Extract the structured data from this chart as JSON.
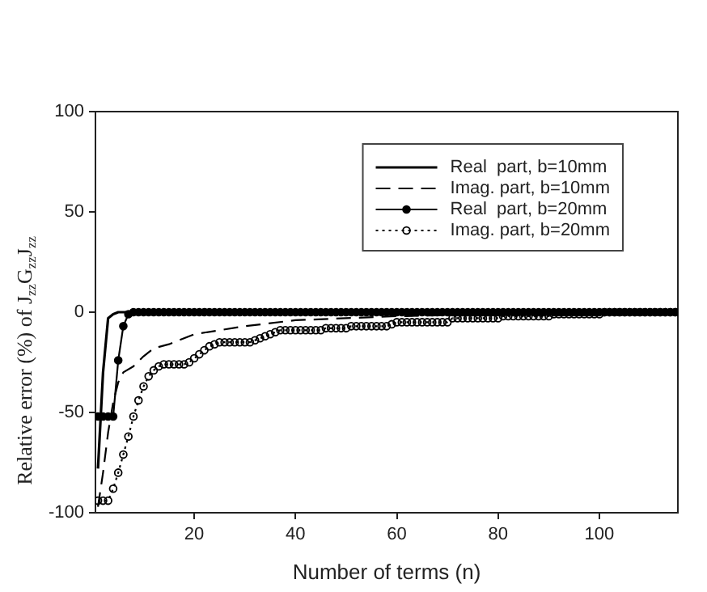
{
  "chart_data": {
    "type": "line",
    "xlabel": "Number of terms (n)",
    "ylabel": "Relative error (%) of J$_{zz}$G$_{zz}$J$_{zz}$",
    "xlim": [
      0.5,
      115.5
    ],
    "xticks": [
      20,
      40,
      60,
      80,
      100
    ],
    "ylim": [
      -100,
      100
    ],
    "yticks": [
      -100,
      -50,
      0,
      50,
      100
    ],
    "grid": false,
    "legend": "top right",
    "series": [
      {
        "name": "Real  part, b=10mm",
        "color": "#000000",
        "line_style": "solid",
        "marker": "none",
        "x": [
          1,
          2,
          3,
          4,
          5,
          10,
          115
        ],
        "values": [
          -78,
          -30,
          -3,
          -1,
          0,
          0,
          0
        ]
      },
      {
        "name": "Imag. part, b=10mm",
        "color": "#000000",
        "line_style": "dashed",
        "marker": "none",
        "x": [
          1,
          2,
          3,
          4,
          5,
          6,
          8,
          10,
          12,
          15,
          20,
          25,
          30,
          40,
          50,
          60,
          80,
          100,
          115
        ],
        "values": [
          -97,
          -80,
          -60,
          -45,
          -35,
          -30,
          -27,
          -22,
          -18,
          -16,
          -11,
          -9,
          -7,
          -4,
          -3,
          -2,
          -1,
          0,
          0
        ]
      },
      {
        "name": "Real  part, b=20mm",
        "color": "#000000",
        "line_style": "solid",
        "marker": "circle",
        "x": [
          1,
          2,
          3,
          4,
          5,
          6,
          7,
          8,
          9,
          10,
          11,
          12,
          13,
          14,
          15,
          16,
          17,
          18,
          19,
          20,
          21,
          22,
          23,
          24,
          25,
          26,
          27,
          28,
          29,
          30,
          31,
          32,
          33,
          34,
          35,
          36,
          37,
          38,
          39,
          40,
          41,
          42,
          43,
          44,
          45,
          46,
          47,
          48,
          49,
          50,
          51,
          52,
          53,
          54,
          55,
          56,
          57,
          58,
          59,
          60,
          61,
          62,
          63,
          64,
          65,
          66,
          67,
          68,
          69,
          70,
          71,
          72,
          73,
          74,
          75,
          76,
          77,
          78,
          79,
          80,
          81,
          82,
          83,
          84,
          85,
          86,
          87,
          88,
          89,
          90,
          91,
          92,
          93,
          94,
          95,
          96,
          97,
          98,
          99,
          100,
          101,
          102,
          103,
          104,
          105,
          106,
          107,
          108,
          109,
          110,
          111,
          112,
          113,
          114,
          115
        ],
        "values": [
          -52,
          -52,
          -52,
          -52,
          -24,
          -7,
          -1,
          0,
          0,
          0,
          0,
          0,
          0,
          0,
          0,
          0,
          0,
          0,
          0,
          0,
          0,
          0,
          0,
          0,
          0,
          0,
          0,
          0,
          0,
          0,
          0,
          0,
          0,
          0,
          0,
          0,
          0,
          0,
          0,
          0,
          0,
          0,
          0,
          0,
          0,
          0,
          0,
          0,
          0,
          0,
          0,
          0,
          0,
          0,
          0,
          0,
          0,
          0,
          0,
          0,
          0,
          0,
          0,
          0,
          0,
          0,
          0,
          0,
          0,
          0,
          0,
          0,
          0,
          0,
          0,
          0,
          0,
          0,
          0,
          0,
          0,
          0,
          0,
          0,
          0,
          0,
          0,
          0,
          0,
          0,
          0,
          0,
          0,
          0,
          0,
          0,
          0,
          0,
          0,
          0,
          0,
          0,
          0,
          0,
          0,
          0,
          0,
          0,
          0,
          0,
          0,
          0,
          0,
          0,
          0
        ]
      },
      {
        "name": "Imag. part, b=20mm",
        "color": "#000000",
        "line_style": "dotted",
        "marker": "circle",
        "x": [
          1,
          2,
          3,
          4,
          5,
          6,
          7,
          8,
          9,
          10,
          11,
          12,
          13,
          14,
          15,
          16,
          17,
          18,
          19,
          20,
          21,
          22,
          23,
          24,
          25,
          26,
          27,
          28,
          29,
          30,
          31,
          32,
          33,
          34,
          35,
          36,
          37,
          38,
          39,
          40,
          41,
          42,
          43,
          44,
          45,
          46,
          47,
          48,
          49,
          50,
          51,
          52,
          53,
          54,
          55,
          56,
          57,
          58,
          59,
          60,
          61,
          62,
          63,
          64,
          65,
          66,
          67,
          68,
          69,
          70,
          71,
          72,
          73,
          74,
          75,
          76,
          77,
          78,
          79,
          80,
          81,
          82,
          83,
          84,
          85,
          86,
          87,
          88,
          89,
          90,
          91,
          92,
          93,
          94,
          95,
          96,
          97,
          98,
          99,
          100,
          101,
          102,
          103,
          104,
          105,
          106,
          107,
          108,
          109,
          110,
          111,
          112,
          113,
          114,
          115
        ],
        "values": [
          -94,
          -94,
          -94,
          -88,
          -80,
          -71,
          -62,
          -52,
          -44,
          -37,
          -32,
          -29,
          -27,
          -26,
          -26,
          -26,
          -26,
          -26,
          -25,
          -23,
          -21,
          -19,
          -17,
          -16,
          -15,
          -15,
          -15,
          -15,
          -15,
          -15,
          -15,
          -14,
          -13,
          -12,
          -11,
          -10,
          -9,
          -9,
          -9,
          -9,
          -9,
          -9,
          -9,
          -9,
          -9,
          -8,
          -8,
          -8,
          -8,
          -8,
          -7,
          -7,
          -7,
          -7,
          -7,
          -7,
          -7,
          -7,
          -6,
          -5,
          -5,
          -5,
          -5,
          -5,
          -5,
          -5,
          -5,
          -5,
          -5,
          -5,
          -3,
          -3,
          -3,
          -3,
          -3,
          -3,
          -3,
          -3,
          -3,
          -3,
          -2,
          -2,
          -2,
          -2,
          -2,
          -2,
          -2,
          -2,
          -2,
          -2,
          -1,
          -1,
          -1,
          -1,
          -1,
          -1,
          -1,
          -1,
          -1,
          -1,
          0,
          0,
          0,
          0,
          0,
          0,
          0,
          0,
          0,
          0,
          0,
          0,
          0,
          0,
          0
        ]
      }
    ]
  }
}
